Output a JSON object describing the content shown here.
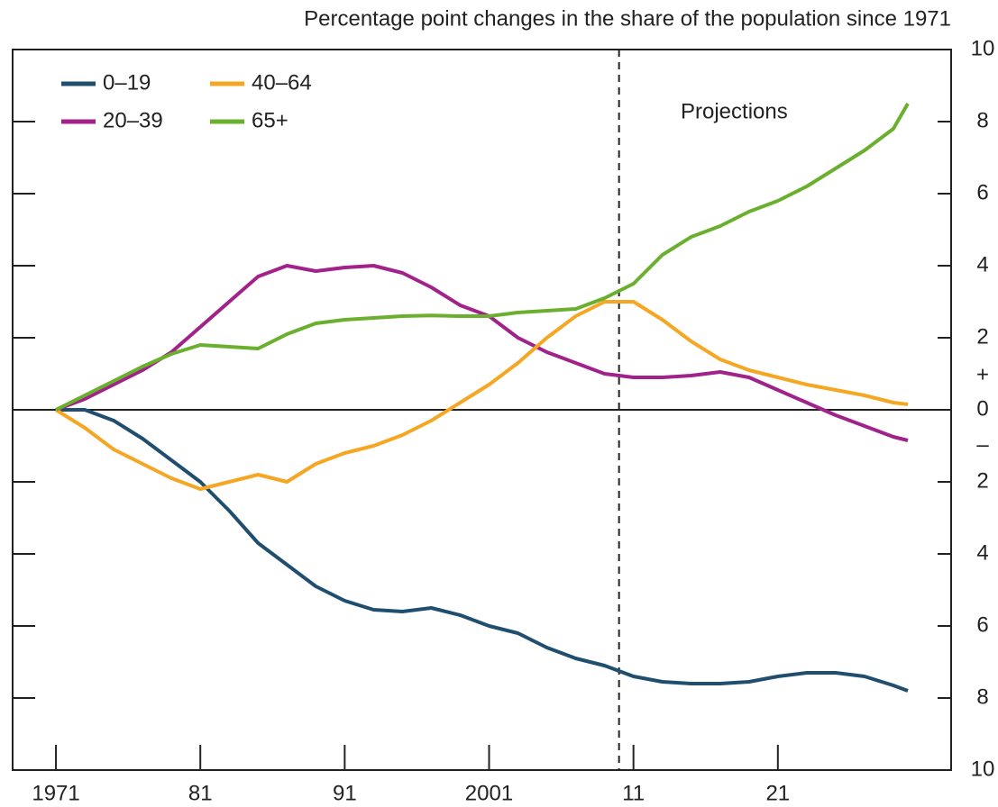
{
  "chart_data": {
    "type": "line",
    "title": "Percentage point changes in the share of the population since 1971",
    "x": [
      1971,
      1973,
      1975,
      1977,
      1979,
      1981,
      1983,
      1985,
      1987,
      1989,
      1991,
      1993,
      1995,
      1997,
      1999,
      2001,
      2003,
      2005,
      2007,
      2009,
      2011,
      2013,
      2015,
      2017,
      2019,
      2021,
      2023,
      2025,
      2027,
      2029,
      2030
    ],
    "series": [
      {
        "name": "0–19",
        "color": "#1f4e6f",
        "values": [
          0,
          0,
          -0.3,
          -0.8,
          -1.4,
          -2.0,
          -2.8,
          -3.7,
          -4.3,
          -4.9,
          -5.3,
          -5.55,
          -5.6,
          -5.5,
          -5.7,
          -6.0,
          -6.2,
          -6.6,
          -6.9,
          -7.1,
          -7.4,
          -7.55,
          -7.6,
          -7.6,
          -7.55,
          -7.4,
          -7.3,
          -7.3,
          -7.4,
          -7.65,
          -7.8
        ]
      },
      {
        "name": "20–39",
        "color": "#a0228a",
        "values": [
          0,
          0.3,
          0.7,
          1.1,
          1.6,
          2.3,
          3.0,
          3.7,
          4.0,
          3.85,
          3.95,
          4.0,
          3.8,
          3.4,
          2.9,
          2.6,
          2.0,
          1.6,
          1.3,
          1.0,
          0.9,
          0.9,
          0.95,
          1.05,
          0.9,
          0.55,
          0.2,
          -0.15,
          -0.45,
          -0.75,
          -0.85
        ]
      },
      {
        "name": "40–64",
        "color": "#f5a623",
        "values": [
          0,
          -0.5,
          -1.1,
          -1.5,
          -1.9,
          -2.2,
          -2.0,
          -1.8,
          -2.0,
          -1.5,
          -1.2,
          -1.0,
          -0.7,
          -0.3,
          0.2,
          0.7,
          1.3,
          2.0,
          2.6,
          3.0,
          3.0,
          2.5,
          1.9,
          1.4,
          1.1,
          0.9,
          0.7,
          0.55,
          0.4,
          0.2,
          0.15
        ]
      },
      {
        "name": "65+",
        "color": "#6ab02e",
        "values": [
          0,
          0.4,
          0.8,
          1.2,
          1.55,
          1.8,
          1.75,
          1.7,
          2.1,
          2.4,
          2.5,
          2.55,
          2.6,
          2.62,
          2.6,
          2.6,
          2.7,
          2.75,
          2.8,
          3.1,
          3.5,
          4.3,
          4.8,
          5.1,
          5.5,
          5.8,
          6.2,
          6.7,
          7.2,
          7.8,
          8.5
        ]
      }
    ],
    "xlim": [
      1968,
      2033
    ],
    "xticks": [
      1971,
      {
        "value": 1981,
        "label": "81"
      },
      {
        "value": 1991,
        "label": "91"
      },
      2001,
      {
        "value": 2011,
        "label": "11"
      },
      {
        "value": 2021,
        "label": "21"
      }
    ],
    "ylim": [
      -10,
      10
    ],
    "yticks": [
      {
        "value": -10,
        "label": "10"
      },
      {
        "value": -8,
        "label": "8"
      },
      {
        "value": -6,
        "label": "6"
      },
      {
        "value": -4,
        "label": "4"
      },
      {
        "value": -2,
        "label": "2"
      },
      0,
      2,
      4,
      6,
      8,
      10
    ],
    "sign_labels": [
      "+",
      "–"
    ],
    "vline_x": 2010,
    "annotation": "Projections",
    "legend": "top-left",
    "grid": false
  }
}
